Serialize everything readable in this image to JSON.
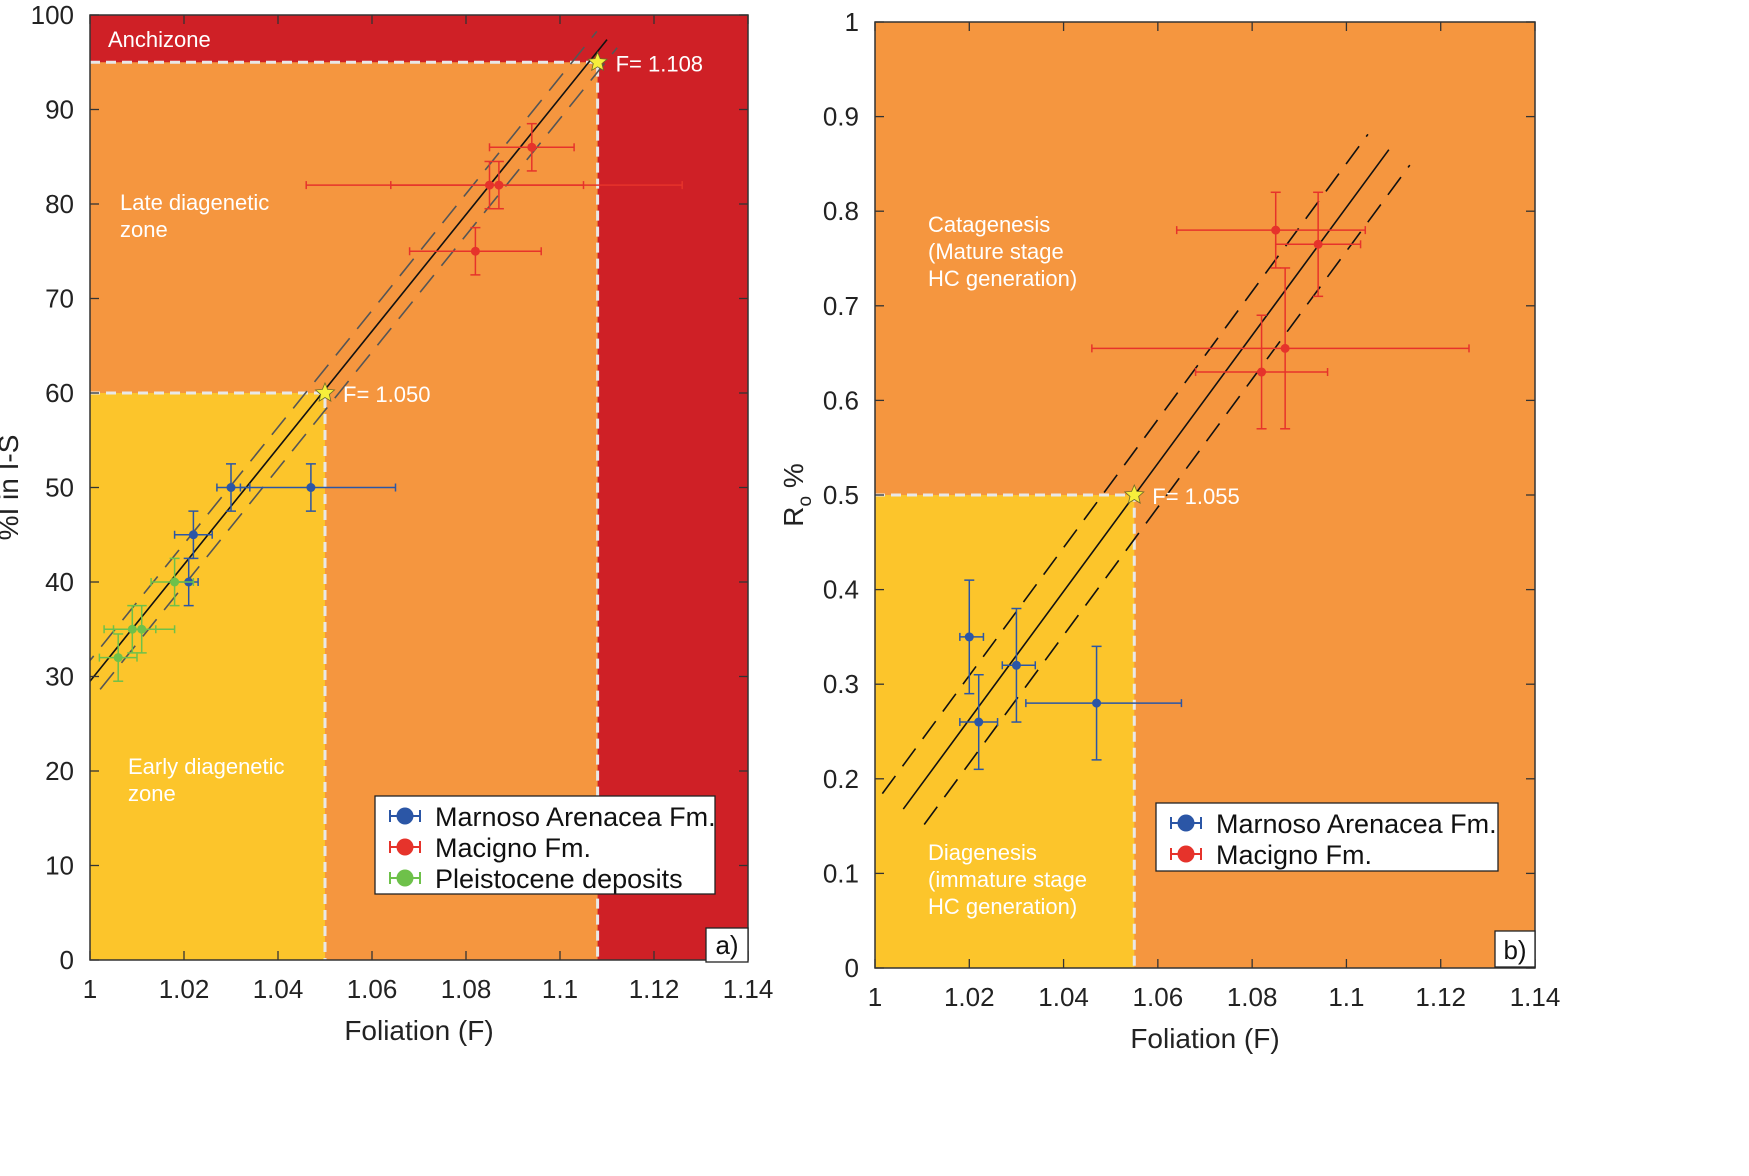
{
  "colors": {
    "early": "#fcc52b",
    "late": "#f5963f",
    "anchizone": "#cf2026",
    "blue": "#2b56a6",
    "red": "#e6332b",
    "green": "#6ec14a",
    "star": "#f6ef3b"
  },
  "chart_data": [
    {
      "type": "scatter",
      "panel_tag": "a)",
      "xlabel": "Foliation (F)",
      "ylabel": "%I in I-S",
      "xlim": [
        1,
        1.14
      ],
      "ylim": [
        0,
        100
      ],
      "xticks": [
        "1",
        "1.02",
        "1.04",
        "1.06",
        "1.08",
        "1.1",
        "1.12",
        "1.14"
      ],
      "yticks": [
        "0",
        "10",
        "20",
        "30",
        "40",
        "50",
        "60",
        "70",
        "80",
        "90",
        "100"
      ],
      "zones": [
        {
          "name": "early",
          "label": [
            "Early diagenetic",
            "zone"
          ]
        },
        {
          "name": "late",
          "label": [
            "Late diagenetic",
            "zone"
          ]
        },
        {
          "name": "anchizone",
          "label": [
            "Anchizone"
          ]
        }
      ],
      "thresholds": [
        {
          "x": 1.05,
          "y": 60,
          "label": "F= 1.050"
        },
        {
          "x": 1.108,
          "y": 95,
          "label": "F= 1.108"
        }
      ],
      "fit": {
        "x": [
          1,
          1.11
        ],
        "y": [
          29.5,
          97.4
        ]
      },
      "series": [
        {
          "name": "Marnoso Arenacea Fm.",
          "color": "blue",
          "points": [
            {
              "x": 1.03,
              "y": 50,
              "xerr": [
                1.027,
                1.034
              ],
              "yerr": [
                47.5,
                52.5
              ]
            },
            {
              "x": 1.047,
              "y": 50,
              "xerr": [
                1.032,
                1.065
              ],
              "yerr": [
                47.5,
                52.5
              ]
            },
            {
              "x": 1.022,
              "y": 45,
              "xerr": [
                1.018,
                1.026
              ],
              "yerr": [
                42.5,
                47.5
              ]
            },
            {
              "x": 1.021,
              "y": 40,
              "xerr": [
                1.018,
                1.023
              ],
              "yerr": [
                37.5,
                42.5
              ]
            }
          ]
        },
        {
          "name": "Macigno Fm.",
          "color": "red",
          "points": [
            {
              "x": 1.094,
              "y": 86,
              "xerr": [
                1.085,
                1.103
              ],
              "yerr": [
                83.5,
                88.5
              ]
            },
            {
              "x": 1.085,
              "y": 82,
              "xerr": [
                1.064,
                1.105
              ],
              "yerr": [
                79.5,
                84.5
              ]
            },
            {
              "x": 1.087,
              "y": 82,
              "xerr": [
                1.046,
                1.126
              ],
              "yerr": [
                79.5,
                84.5
              ]
            },
            {
              "x": 1.082,
              "y": 75,
              "xerr": [
                1.068,
                1.096
              ],
              "yerr": [
                72.5,
                77.5
              ]
            }
          ]
        },
        {
          "name": "Pleistocene deposits",
          "color": "green",
          "points": [
            {
              "x": 1.018,
              "y": 40,
              "xerr": [
                1.013,
                1.022
              ],
              "yerr": [
                37.5,
                42.5
              ]
            },
            {
              "x": 1.011,
              "y": 35,
              "xerr": [
                1.005,
                1.018
              ],
              "yerr": [
                32.5,
                37.5
              ]
            },
            {
              "x": 1.009,
              "y": 35,
              "xerr": [
                1.003,
                1.014
              ],
              "yerr": [
                32.5,
                37.5
              ]
            },
            {
              "x": 1.006,
              "y": 32,
              "xerr": [
                1.002,
                1.01
              ],
              "yerr": [
                29.5,
                34.5
              ]
            }
          ]
        }
      ]
    },
    {
      "type": "scatter",
      "panel_tag": "b)",
      "xlabel": "Foliation (F)",
      "ylabel": "R",
      "ylabel_sub": "o",
      "ylabel_suffix": " %",
      "xlim": [
        1,
        1.14
      ],
      "ylim": [
        0,
        1
      ],
      "xticks": [
        "1",
        "1.02",
        "1.04",
        "1.06",
        "1.08",
        "1.1",
        "1.12",
        "1.14"
      ],
      "yticks": [
        "0",
        "0.1",
        "0.2",
        "0.3",
        "0.4",
        "0.5",
        "0.6",
        "0.7",
        "0.8",
        "0.9",
        "1"
      ],
      "zones": [
        {
          "name": "early",
          "label": [
            "Diagenesis",
            "(immature stage",
            "HC generation)"
          ]
        },
        {
          "name": "late",
          "label": [
            "Catagenesis",
            "(Mature stage",
            "HC generation)"
          ]
        }
      ],
      "thresholds": [
        {
          "x": 1.055,
          "y": 0.5,
          "label": "F= 1.055"
        }
      ],
      "fit": {
        "x": [
          1.006,
          1.109
        ],
        "y": [
          0.168,
          0.865
        ]
      },
      "series": [
        {
          "name": "Marnoso Arenacea Fm.",
          "color": "blue",
          "points": [
            {
              "x": 1.02,
              "y": 0.35,
              "xerr": [
                1.018,
                1.023
              ],
              "yerr": [
                0.29,
                0.41
              ]
            },
            {
              "x": 1.022,
              "y": 0.26,
              "xerr": [
                1.018,
                1.026
              ],
              "yerr": [
                0.21,
                0.31
              ]
            },
            {
              "x": 1.03,
              "y": 0.32,
              "xerr": [
                1.027,
                1.034
              ],
              "yerr": [
                0.26,
                0.38
              ]
            },
            {
              "x": 1.047,
              "y": 0.28,
              "xerr": [
                1.032,
                1.065
              ],
              "yerr": [
                0.22,
                0.34
              ]
            }
          ]
        },
        {
          "name": "Macigno Fm.",
          "color": "red",
          "points": [
            {
              "x": 1.085,
              "y": 0.78,
              "xerr": [
                1.064,
                1.104
              ],
              "yerr": [
                0.74,
                0.82
              ]
            },
            {
              "x": 1.094,
              "y": 0.765,
              "xerr": [
                1.085,
                1.103
              ],
              "yerr": [
                0.71,
                0.82
              ]
            },
            {
              "x": 1.087,
              "y": 0.655,
              "xerr": [
                1.046,
                1.126
              ],
              "yerr": [
                0.57,
                0.74
              ]
            },
            {
              "x": 1.082,
              "y": 0.63,
              "xerr": [
                1.068,
                1.096
              ],
              "yerr": [
                0.57,
                0.69
              ]
            }
          ]
        }
      ]
    }
  ]
}
